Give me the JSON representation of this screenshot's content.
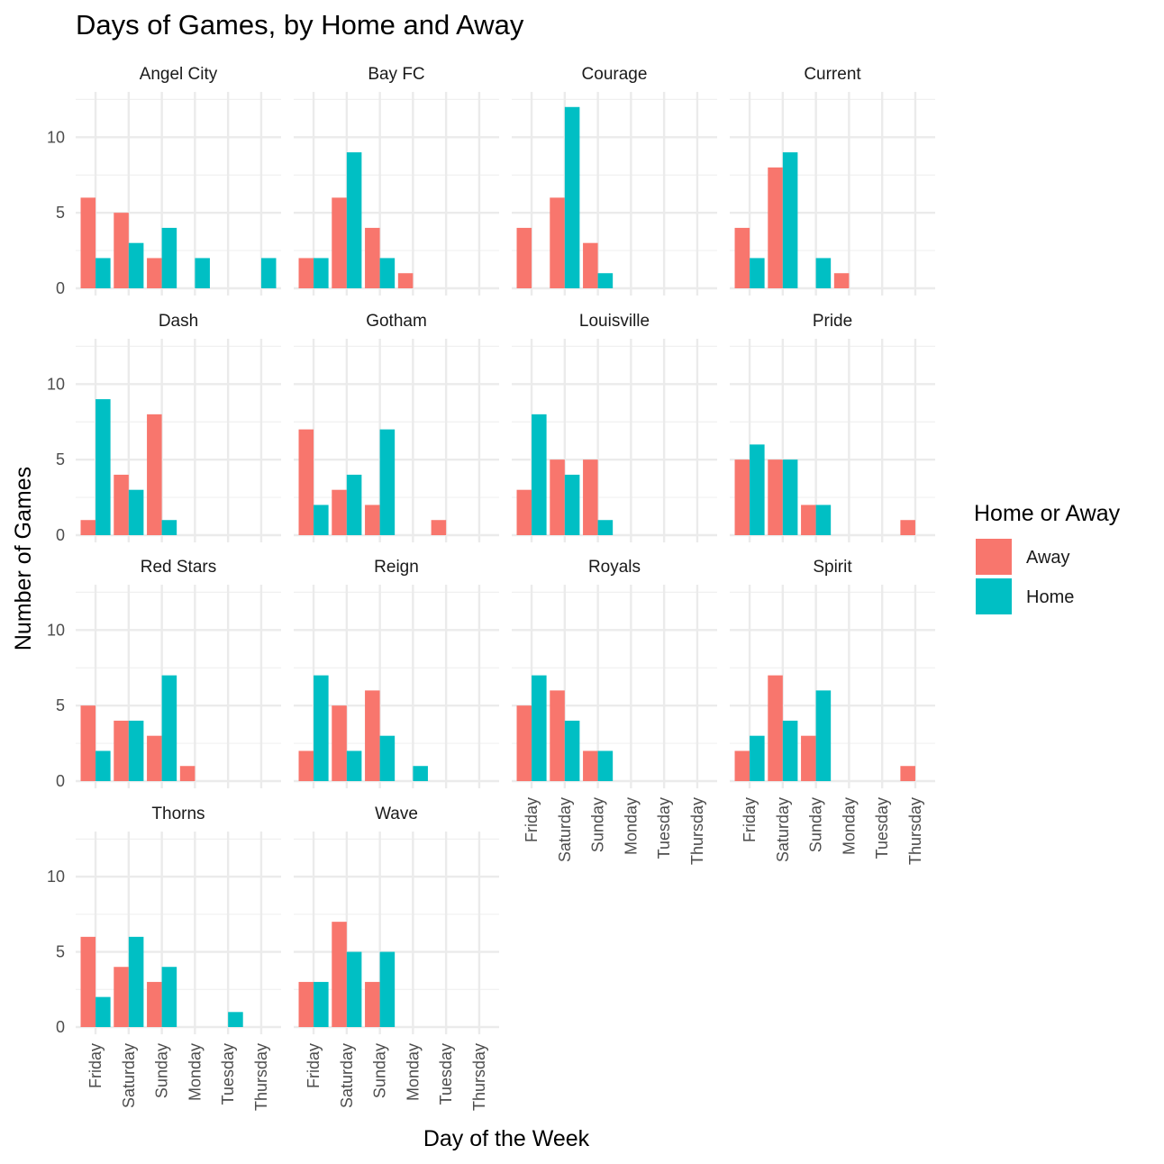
{
  "chart_data": {
    "type": "bar",
    "title": "Days of Games, by Home and Away",
    "xlabel": "Day of the Week",
    "ylabel": "Number of Games",
    "ylim": [
      0,
      13
    ],
    "yticks": [
      0,
      5,
      10
    ],
    "grid": true,
    "categories": [
      "Friday",
      "Saturday",
      "Sunday",
      "Monday",
      "Tuesday",
      "Thursday"
    ],
    "legend": {
      "title": "Home or Away",
      "position": "right",
      "entries": [
        {
          "name": "Away",
          "color": "#F8766D"
        },
        {
          "name": "Home",
          "color": "#00BFC4"
        }
      ]
    },
    "facets": [
      {
        "name": "Angel City",
        "series": [
          {
            "name": "Away",
            "values": [
              6,
              5,
              2,
              0,
              0,
              0
            ]
          },
          {
            "name": "Home",
            "values": [
              2,
              3,
              4,
              2,
              0,
              2
            ]
          }
        ]
      },
      {
        "name": "Bay FC",
        "series": [
          {
            "name": "Away",
            "values": [
              2,
              6,
              4,
              1,
              0,
              0
            ]
          },
          {
            "name": "Home",
            "values": [
              2,
              9,
              2,
              0,
              0,
              0
            ]
          }
        ]
      },
      {
        "name": "Courage",
        "series": [
          {
            "name": "Away",
            "values": [
              4,
              6,
              3,
              0,
              0,
              0
            ]
          },
          {
            "name": "Home",
            "values": [
              0,
              12,
              1,
              0,
              0,
              0
            ]
          }
        ]
      },
      {
        "name": "Current",
        "series": [
          {
            "name": "Away",
            "values": [
              4,
              8,
              0,
              1,
              0,
              0
            ]
          },
          {
            "name": "Home",
            "values": [
              2,
              9,
              2,
              0,
              0,
              0
            ]
          }
        ]
      },
      {
        "name": "Dash",
        "series": [
          {
            "name": "Away",
            "values": [
              1,
              4,
              8,
              0,
              0,
              0
            ]
          },
          {
            "name": "Home",
            "values": [
              9,
              3,
              1,
              0,
              0,
              0
            ]
          }
        ]
      },
      {
        "name": "Gotham",
        "series": [
          {
            "name": "Away",
            "values": [
              7,
              3,
              2,
              0,
              1,
              0
            ]
          },
          {
            "name": "Home",
            "values": [
              2,
              4,
              7,
              0,
              0,
              0
            ]
          }
        ]
      },
      {
        "name": "Louisville",
        "series": [
          {
            "name": "Away",
            "values": [
              3,
              5,
              5,
              0,
              0,
              0
            ]
          },
          {
            "name": "Home",
            "values": [
              8,
              4,
              1,
              0,
              0,
              0
            ]
          }
        ]
      },
      {
        "name": "Pride",
        "series": [
          {
            "name": "Away",
            "values": [
              5,
              5,
              2,
              0,
              0,
              1
            ]
          },
          {
            "name": "Home",
            "values": [
              6,
              5,
              2,
              0,
              0,
              0
            ]
          }
        ]
      },
      {
        "name": "Red Stars",
        "series": [
          {
            "name": "Away",
            "values": [
              5,
              4,
              3,
              1,
              0,
              0
            ]
          },
          {
            "name": "Home",
            "values": [
              2,
              4,
              7,
              0,
              0,
              0
            ]
          }
        ]
      },
      {
        "name": "Reign",
        "series": [
          {
            "name": "Away",
            "values": [
              2,
              5,
              6,
              0,
              0,
              0
            ]
          },
          {
            "name": "Home",
            "values": [
              7,
              2,
              3,
              1,
              0,
              0
            ]
          }
        ]
      },
      {
        "name": "Royals",
        "series": [
          {
            "name": "Away",
            "values": [
              5,
              6,
              2,
              0,
              0,
              0
            ]
          },
          {
            "name": "Home",
            "values": [
              7,
              4,
              2,
              0,
              0,
              0
            ]
          }
        ]
      },
      {
        "name": "Spirit",
        "series": [
          {
            "name": "Away",
            "values": [
              2,
              7,
              3,
              0,
              0,
              1
            ]
          },
          {
            "name": "Home",
            "values": [
              3,
              4,
              6,
              0,
              0,
              0
            ]
          }
        ]
      },
      {
        "name": "Thorns",
        "series": [
          {
            "name": "Away",
            "values": [
              6,
              4,
              3,
              0,
              0,
              0
            ]
          },
          {
            "name": "Home",
            "values": [
              2,
              6,
              4,
              0,
              1,
              0
            ]
          }
        ]
      },
      {
        "name": "Wave",
        "series": [
          {
            "name": "Away",
            "values": [
              3,
              7,
              3,
              0,
              0,
              0
            ]
          },
          {
            "name": "Home",
            "values": [
              3,
              5,
              5,
              0,
              0,
              0
            ]
          }
        ]
      }
    ]
  }
}
